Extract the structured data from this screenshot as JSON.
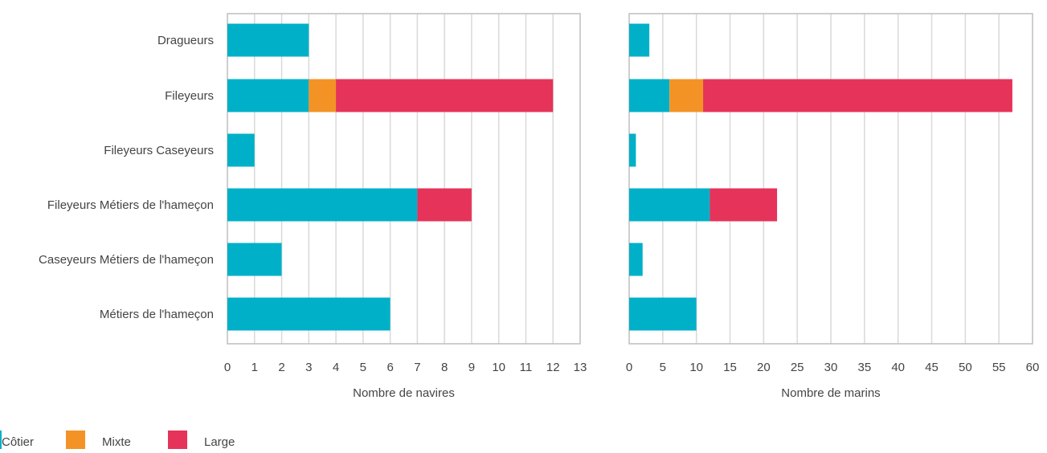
{
  "chart_data": [
    {
      "type": "bar",
      "orientation": "horizontal",
      "stacked": true,
      "categories": [
        "Dragueurs",
        "Fileyeurs",
        "Fileyeurs Caseyeurs",
        "Fileyeurs Métiers de l'hameçon",
        "Caseyeurs Métiers de l'hameçon",
        "Métiers de l'hameçon"
      ],
      "series": [
        {
          "name": "Côtier",
          "values": [
            3,
            3,
            1,
            7,
            2,
            6
          ]
        },
        {
          "name": "Mixte",
          "values": [
            0,
            1,
            0,
            0,
            0,
            0
          ]
        },
        {
          "name": "Large",
          "values": [
            0,
            8,
            0,
            2,
            0,
            0
          ]
        }
      ],
      "xlabel": "Nombre de navires",
      "xlim": [
        0,
        13
      ],
      "xticks": [
        0,
        1,
        2,
        3,
        4,
        5,
        6,
        7,
        8,
        9,
        10,
        11,
        12,
        13
      ],
      "grid": true
    },
    {
      "type": "bar",
      "orientation": "horizontal",
      "stacked": true,
      "categories": [
        "Dragueurs",
        "Fileyeurs",
        "Fileyeurs Caseyeurs",
        "Fileyeurs Métiers de l'hameçon",
        "Caseyeurs Métiers de l'hameçon",
        "Métiers de l'hameçon"
      ],
      "series": [
        {
          "name": "Côtier",
          "values": [
            3,
            6,
            1,
            12,
            2,
            10
          ]
        },
        {
          "name": "Mixte",
          "values": [
            0,
            5,
            0,
            0,
            0,
            0
          ]
        },
        {
          "name": "Large",
          "values": [
            0,
            46,
            0,
            10,
            0,
            0
          ]
        }
      ],
      "xlabel": "Nombre de marins",
      "xlim": [
        0,
        60
      ],
      "xticks": [
        0,
        5,
        10,
        15,
        20,
        25,
        30,
        35,
        40,
        45,
        50,
        55,
        60
      ],
      "grid": true
    }
  ],
  "legend": {
    "placement": "bottom-left",
    "items": [
      {
        "label": "Côtier",
        "color": "#00b0c8"
      },
      {
        "label": "Mixte",
        "color": "#f39325"
      },
      {
        "label": "Large",
        "color": "#e6335a"
      }
    ]
  }
}
